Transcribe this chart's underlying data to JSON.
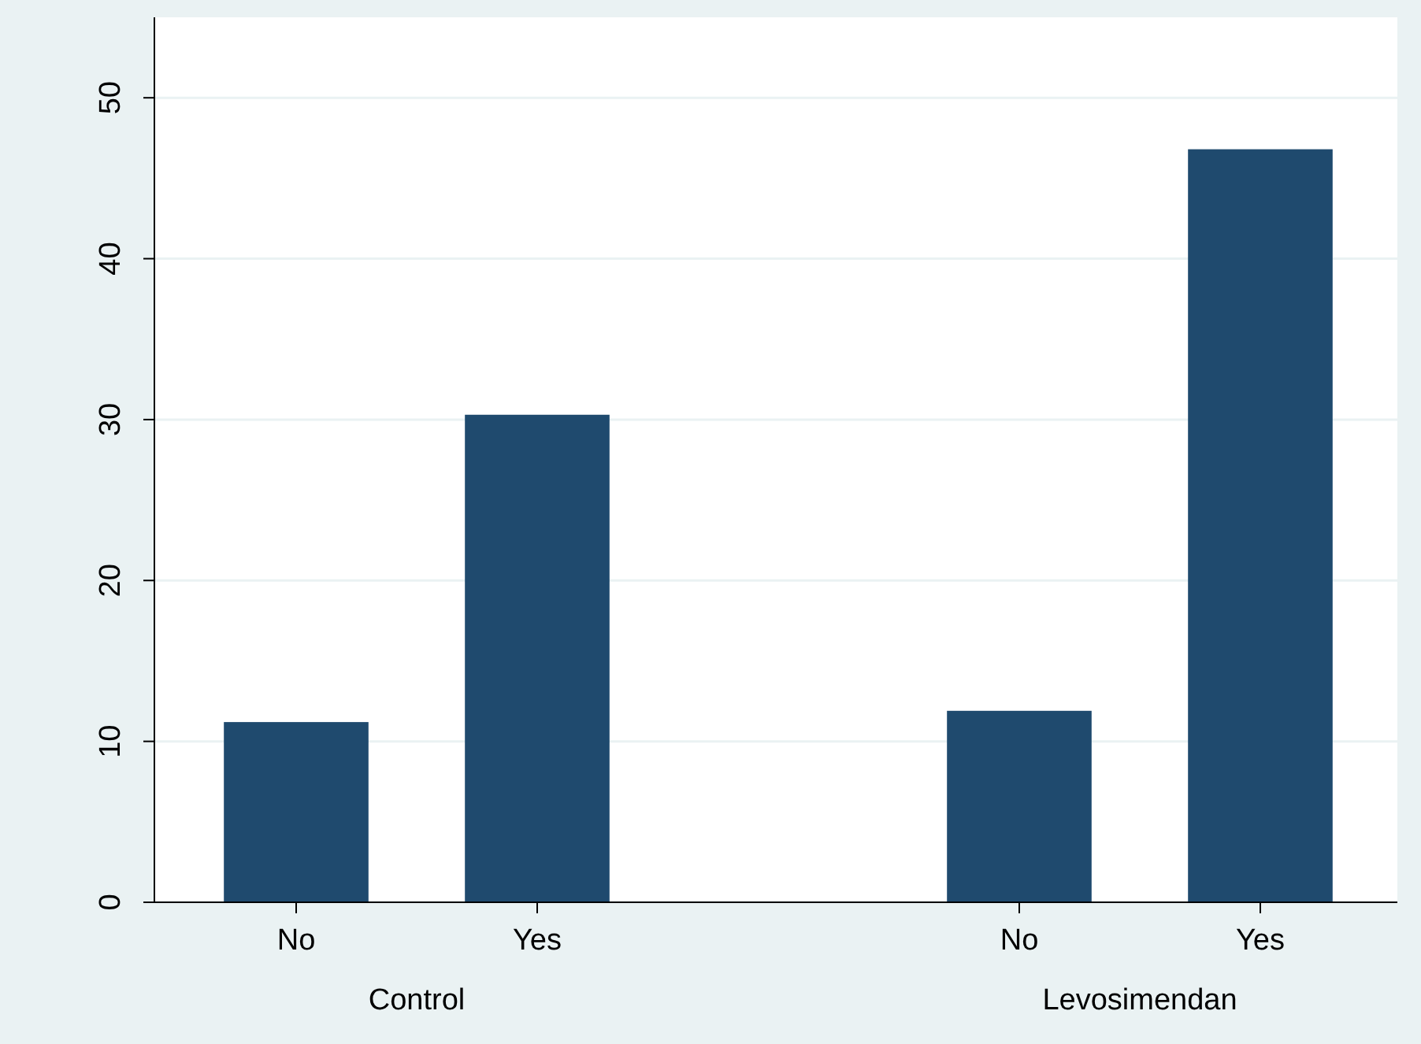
{
  "chart_data": {
    "type": "bar",
    "categories": [
      "No",
      "Yes",
      null,
      "No",
      "Yes"
    ],
    "values": [
      11.2,
      30.3,
      null,
      11.9,
      46.8
    ],
    "color": "#1f4a6e",
    "ylim": [
      0,
      55
    ],
    "yticks": [
      0,
      10,
      20,
      30,
      40,
      50
    ],
    "grid": "y",
    "annotations": [
      "Control",
      "Levosimendan"
    ]
  }
}
